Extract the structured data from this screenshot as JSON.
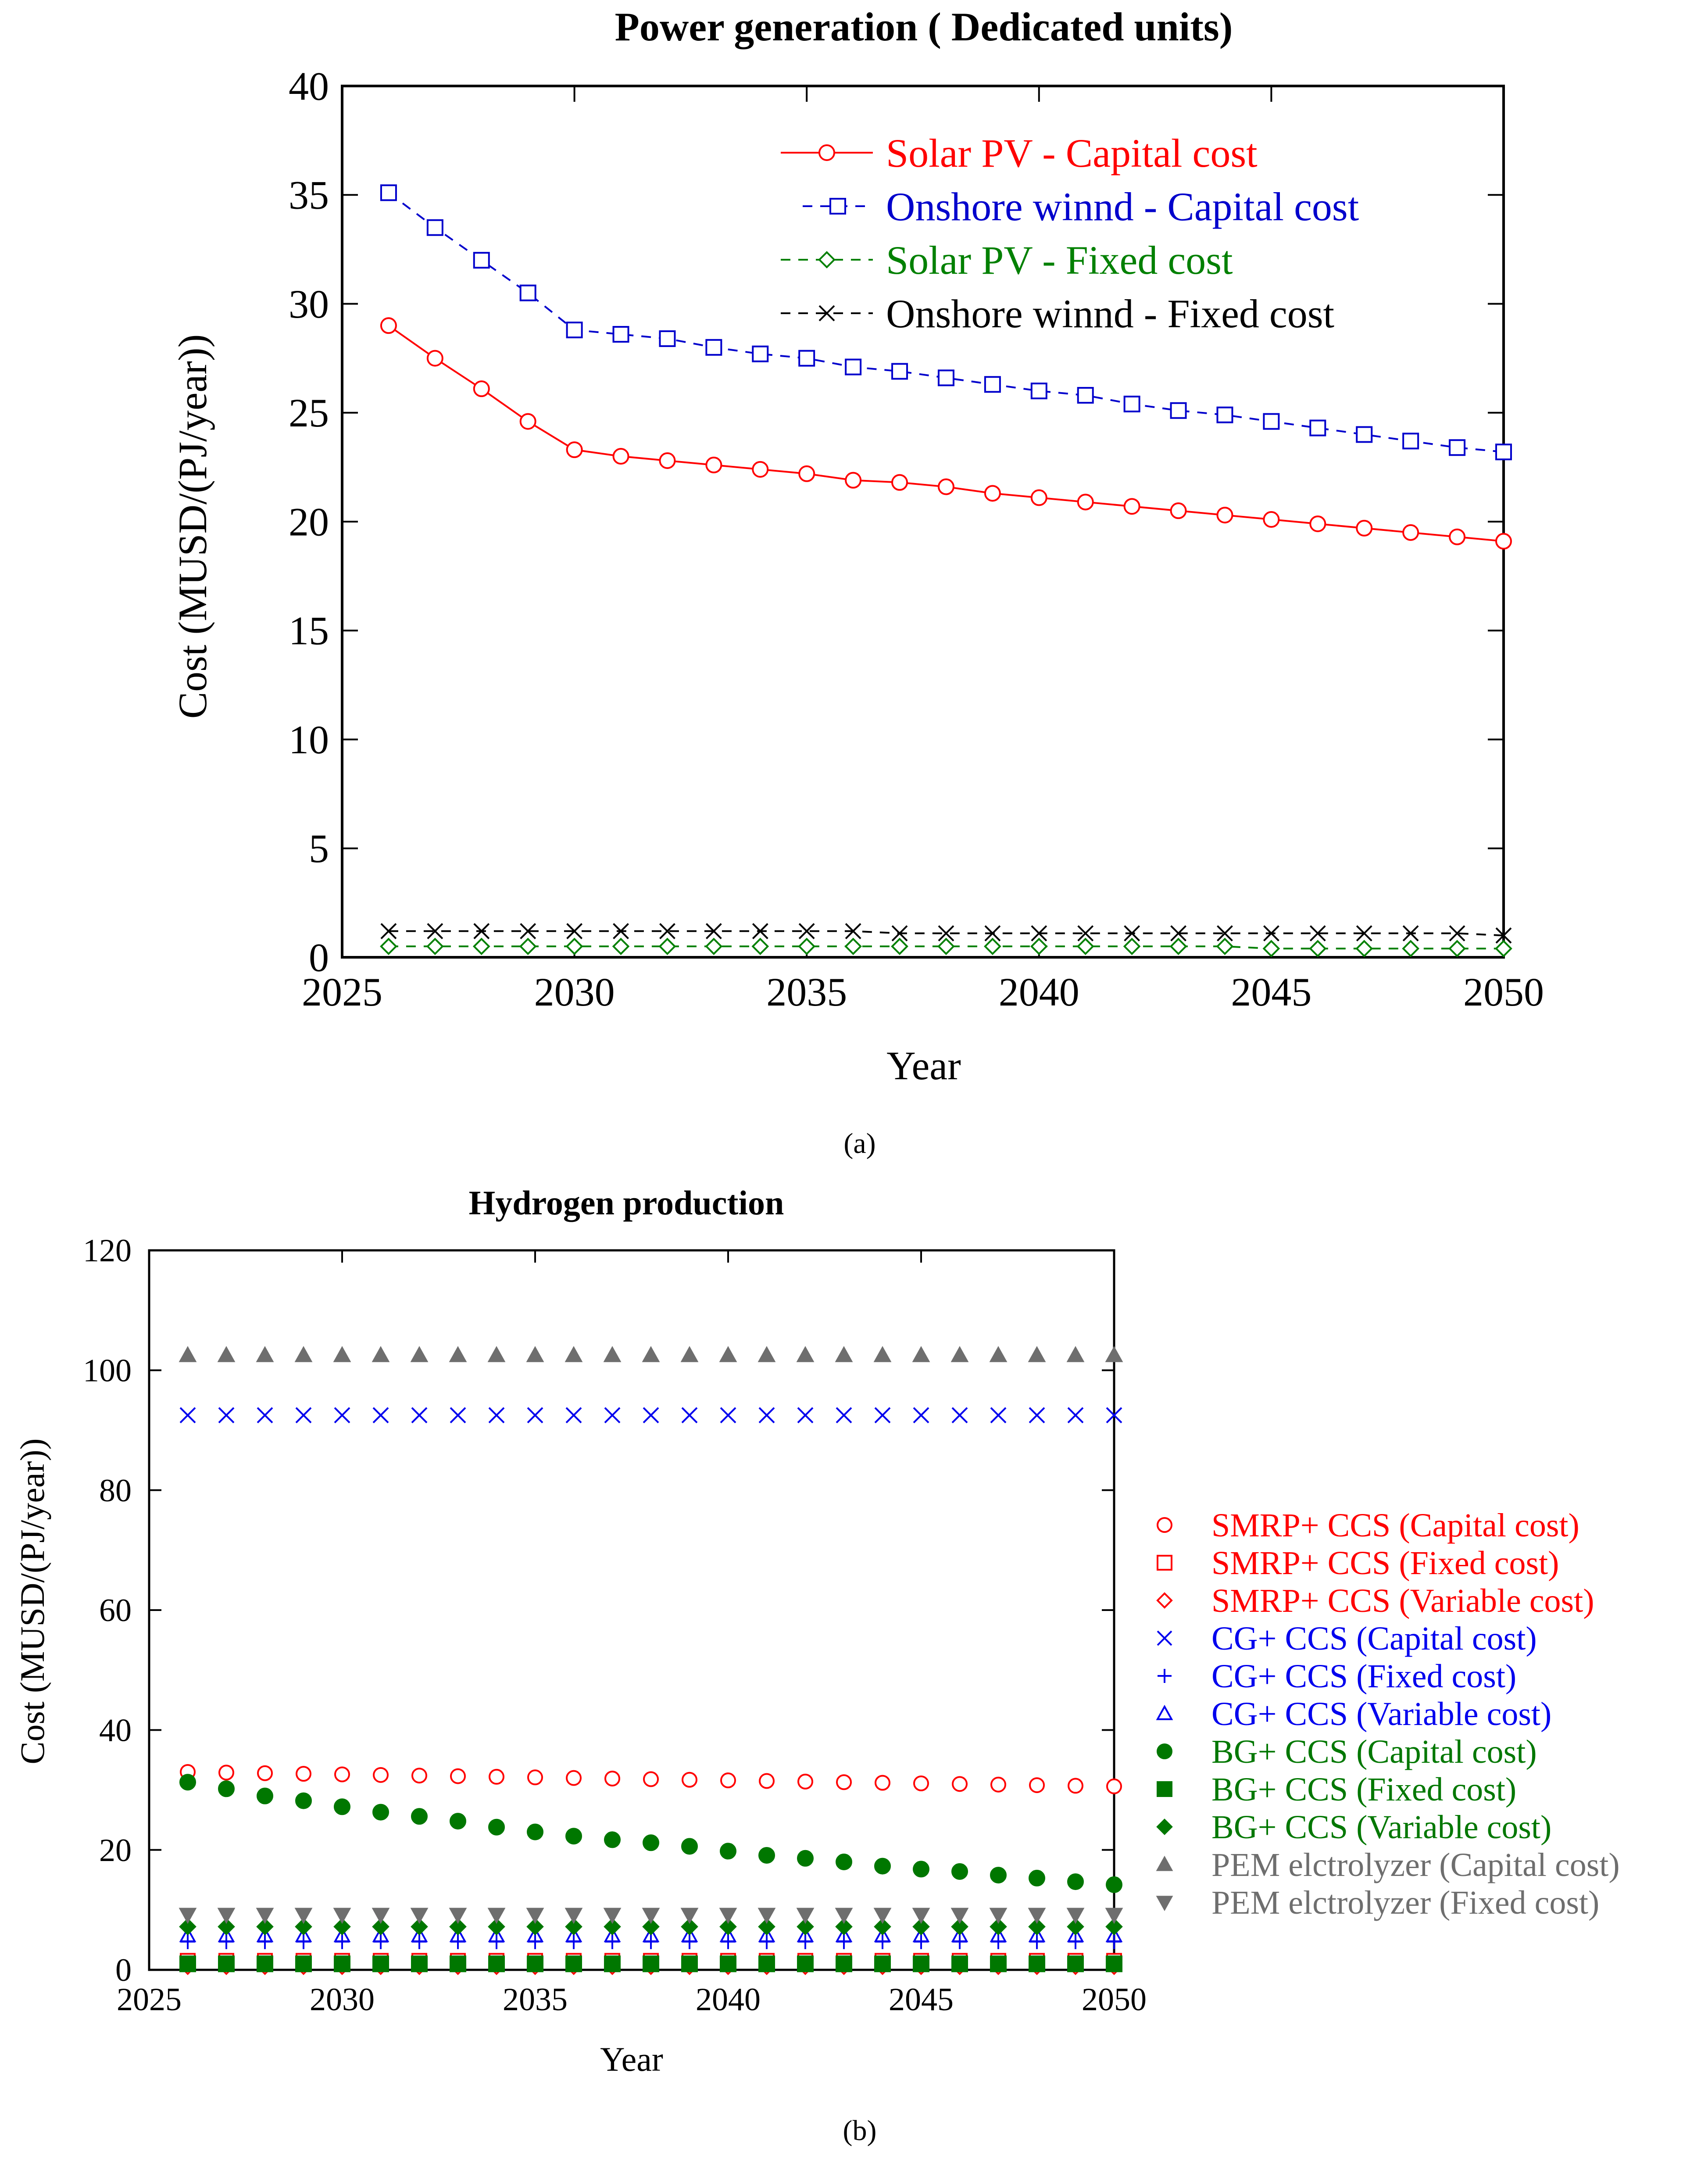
{
  "figure": {
    "caption_a": "(a)",
    "caption_b": "(b)"
  },
  "chart_data": [
    {
      "id": "a",
      "type": "line",
      "title": "Power generation ( Dedicated units)",
      "xlabel": "Year",
      "ylabel": "Cost (MUSD/(PJ/year))",
      "xlim": [
        2025,
        2050
      ],
      "ylim": [
        0,
        40
      ],
      "xticks": [
        2025,
        2030,
        2035,
        2040,
        2045,
        2050
      ],
      "yticks": [
        0,
        5,
        10,
        15,
        20,
        25,
        30,
        35,
        40
      ],
      "legend_position": "top-right",
      "x": [
        2026,
        2027,
        2028,
        2029,
        2030,
        2031,
        2032,
        2033,
        2034,
        2035,
        2036,
        2037,
        2038,
        2039,
        2040,
        2041,
        2042,
        2043,
        2044,
        2045,
        2046,
        2047,
        2048,
        2049,
        2050
      ],
      "series": [
        {
          "name": "Solar PV - Capital cost",
          "legend_parts": [
            "Solar PV",
            " - Capital cost"
          ],
          "color": "#ff0000",
          "marker": "circle",
          "line": "solid",
          "values": [
            29.0,
            27.5,
            26.1,
            24.6,
            23.3,
            23.0,
            22.8,
            22.6,
            22.4,
            22.2,
            21.9,
            21.8,
            21.6,
            21.3,
            21.1,
            20.9,
            20.7,
            20.5,
            20.3,
            20.1,
            19.9,
            19.7,
            19.5,
            19.3,
            19.1
          ]
        },
        {
          "name": "Onshore winnd - Capital cost",
          "legend_parts": [
            "Onshore winnd",
            " -  Capital cost"
          ],
          "color": "#0000cc",
          "marker": "square",
          "line": "dashed",
          "values": [
            35.1,
            33.5,
            32.0,
            30.5,
            28.8,
            28.6,
            28.4,
            28.0,
            27.7,
            27.5,
            27.1,
            26.9,
            26.6,
            26.3,
            26.0,
            25.8,
            25.4,
            25.1,
            24.9,
            24.6,
            24.3,
            24.0,
            23.7,
            23.4,
            23.2
          ]
        },
        {
          "name": "Solar PV - Fixed cost",
          "legend_parts": [
            "Solar PV",
            " - Fixed cost"
          ],
          "color": "#008000",
          "marker": "diamond",
          "line": "dashed",
          "values": [
            0.5,
            0.5,
            0.5,
            0.5,
            0.5,
            0.5,
            0.5,
            0.5,
            0.5,
            0.5,
            0.5,
            0.5,
            0.5,
            0.5,
            0.5,
            0.5,
            0.5,
            0.5,
            0.5,
            0.4,
            0.4,
            0.4,
            0.4,
            0.4,
            0.4
          ]
        },
        {
          "name": "Onshore winnd - Fixed cost",
          "legend_parts": [
            "Onshore winnd",
            " -  Fixed cost"
          ],
          "color": "#000000",
          "marker": "x",
          "line": "dashed",
          "values": [
            1.2,
            1.2,
            1.2,
            1.2,
            1.2,
            1.2,
            1.2,
            1.2,
            1.2,
            1.2,
            1.2,
            1.1,
            1.1,
            1.1,
            1.1,
            1.1,
            1.1,
            1.1,
            1.1,
            1.1,
            1.1,
            1.1,
            1.1,
            1.1,
            1.0
          ]
        }
      ]
    },
    {
      "id": "b",
      "type": "scatter",
      "title": "Hydrogen production",
      "xlabel": "Year",
      "ylabel": "Cost (MUSD/(PJ/year))",
      "xlim": [
        2025,
        2050
      ],
      "ylim": [
        0,
        120
      ],
      "xticks": [
        2025,
        2030,
        2035,
        2040,
        2045,
        2050
      ],
      "yticks": [
        0,
        20,
        40,
        60,
        80,
        100,
        120
      ],
      "legend_position": "right-outside",
      "x": [
        2026,
        2027,
        2028,
        2029,
        2030,
        2031,
        2032,
        2033,
        2034,
        2035,
        2036,
        2037,
        2038,
        2039,
        2040,
        2041,
        2042,
        2043,
        2044,
        2045,
        2046,
        2047,
        2048,
        2049,
        2050
      ],
      "series": [
        {
          "name": "SMRP+ CCS (Capital cost)",
          "color": "#ff0000",
          "marker": "circle-open",
          "values": [
            33.0,
            32.9,
            32.8,
            32.7,
            32.6,
            32.5,
            32.4,
            32.3,
            32.2,
            32.1,
            32.0,
            31.9,
            31.8,
            31.7,
            31.6,
            31.5,
            31.4,
            31.3,
            31.2,
            31.1,
            31.0,
            30.9,
            30.8,
            30.7,
            30.6
          ]
        },
        {
          "name": "SMRP+ CCS (Fixed cost)",
          "color": "#ff0000",
          "marker": "square-open",
          "values": [
            1.5,
            1.5,
            1.5,
            1.5,
            1.5,
            1.5,
            1.5,
            1.5,
            1.5,
            1.5,
            1.5,
            1.5,
            1.5,
            1.5,
            1.5,
            1.5,
            1.5,
            1.5,
            1.5,
            1.5,
            1.5,
            1.5,
            1.5,
            1.5,
            1.5
          ]
        },
        {
          "name": "SMRP+ CCS (Variable cost)",
          "color": "#ff0000",
          "marker": "diamond-open",
          "values": [
            0.5,
            0.5,
            0.5,
            0.5,
            0.5,
            0.5,
            0.5,
            0.5,
            0.5,
            0.5,
            0.5,
            0.5,
            0.5,
            0.5,
            0.5,
            0.5,
            0.5,
            0.5,
            0.5,
            0.5,
            0.5,
            0.5,
            0.5,
            0.5,
            0.5
          ]
        },
        {
          "name": "CG+ CCS (Capital cost)",
          "color": "#0000ee",
          "marker": "x",
          "values": [
            92.5,
            92.5,
            92.5,
            92.5,
            92.5,
            92.5,
            92.5,
            92.5,
            92.5,
            92.5,
            92.5,
            92.5,
            92.5,
            92.5,
            92.5,
            92.5,
            92.5,
            92.5,
            92.5,
            92.5,
            92.5,
            92.5,
            92.5,
            92.5,
            92.5
          ]
        },
        {
          "name": "CG+ CCS (Fixed cost)",
          "color": "#0000ee",
          "marker": "plus",
          "values": [
            4.7,
            4.7,
            4.7,
            4.7,
            4.7,
            4.7,
            4.7,
            4.7,
            4.7,
            4.7,
            4.7,
            4.7,
            4.7,
            4.7,
            4.7,
            4.7,
            4.7,
            4.7,
            4.7,
            4.7,
            4.7,
            4.7,
            4.7,
            4.7,
            4.7
          ]
        },
        {
          "name": "CG+ CCS (Variable cost)",
          "color": "#0000ee",
          "marker": "triangle-open",
          "values": [
            5.7,
            5.7,
            5.7,
            5.7,
            5.7,
            5.7,
            5.7,
            5.7,
            5.7,
            5.7,
            5.7,
            5.7,
            5.7,
            5.7,
            5.7,
            5.7,
            5.7,
            5.7,
            5.7,
            5.7,
            5.7,
            5.7,
            5.7,
            5.7,
            5.7
          ]
        },
        {
          "name": "BG+ CCS (Capital cost)",
          "color": "#007700",
          "marker": "circle-filled",
          "values": [
            31.3,
            30.2,
            29.0,
            28.2,
            27.2,
            26.3,
            25.6,
            24.8,
            23.8,
            23.0,
            22.3,
            21.7,
            21.2,
            20.6,
            19.8,
            19.1,
            18.6,
            18.0,
            17.3,
            16.8,
            16.4,
            15.8,
            15.3,
            14.7,
            14.2
          ]
        },
        {
          "name": "BG+ CCS (Fixed cost)",
          "color": "#007700",
          "marker": "square-filled",
          "values": [
            1.0,
            1.0,
            1.0,
            1.0,
            1.0,
            1.0,
            1.0,
            1.0,
            1.0,
            1.0,
            1.0,
            1.0,
            1.0,
            1.0,
            1.0,
            1.0,
            1.0,
            1.0,
            1.0,
            1.0,
            1.0,
            1.0,
            1.0,
            1.0,
            1.0
          ]
        },
        {
          "name": "BG+ CCS (Variable cost)",
          "color": "#007700",
          "marker": "diamond-filled",
          "values": [
            7.2,
            7.2,
            7.2,
            7.2,
            7.2,
            7.2,
            7.2,
            7.2,
            7.2,
            7.2,
            7.2,
            7.2,
            7.2,
            7.2,
            7.2,
            7.2,
            7.2,
            7.2,
            7.2,
            7.2,
            7.2,
            7.2,
            7.2,
            7.2,
            7.2
          ]
        },
        {
          "name": "PEM elctrolyzer (Capital cost)",
          "color": "#6e6e6e",
          "marker": "triangle-filled",
          "values": [
            102.5,
            102.5,
            102.5,
            102.5,
            102.5,
            102.5,
            102.5,
            102.5,
            102.5,
            102.5,
            102.5,
            102.5,
            102.5,
            102.5,
            102.5,
            102.5,
            102.5,
            102.5,
            102.5,
            102.5,
            102.5,
            102.5,
            102.5,
            102.5,
            102.5
          ]
        },
        {
          "name": "PEM elctrolyzer (Fixed cost)",
          "color": "#6e6e6e",
          "marker": "triangle-down-filled",
          "values": [
            9.2,
            9.2,
            9.2,
            9.2,
            9.2,
            9.2,
            9.2,
            9.2,
            9.2,
            9.2,
            9.2,
            9.2,
            9.2,
            9.2,
            9.2,
            9.2,
            9.2,
            9.2,
            9.2,
            9.2,
            9.2,
            9.2,
            9.2,
            9.2,
            9.2
          ]
        }
      ]
    }
  ]
}
